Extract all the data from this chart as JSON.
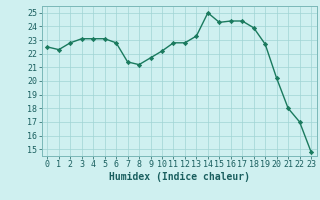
{
  "x": [
    0,
    1,
    2,
    3,
    4,
    5,
    6,
    7,
    8,
    9,
    10,
    11,
    12,
    13,
    14,
    15,
    16,
    17,
    18,
    19,
    20,
    21,
    22,
    23
  ],
  "y": [
    22.5,
    22.3,
    22.8,
    23.1,
    23.1,
    23.1,
    22.8,
    21.4,
    21.2,
    21.7,
    22.2,
    22.8,
    22.8,
    23.3,
    25.0,
    24.3,
    24.4,
    24.4,
    23.9,
    22.7,
    20.2,
    18.0,
    17.0,
    14.8
  ],
  "line_color": "#1a7a5e",
  "marker": "D",
  "markersize": 2.2,
  "linewidth": 1.0,
  "xlabel": "Humidex (Indice chaleur)",
  "xlim": [
    -0.5,
    23.5
  ],
  "ylim": [
    14.5,
    25.5
  ],
  "yticks": [
    15,
    16,
    17,
    18,
    19,
    20,
    21,
    22,
    23,
    24,
    25
  ],
  "xticks": [
    0,
    1,
    2,
    3,
    4,
    5,
    6,
    7,
    8,
    9,
    10,
    11,
    12,
    13,
    14,
    15,
    16,
    17,
    18,
    19,
    20,
    21,
    22,
    23
  ],
  "bg_color": "#cff0f0",
  "grid_color": "#a0d4d4",
  "xlabel_fontsize": 7,
  "tick_fontsize": 6,
  "tick_label_color": "#1a5f5f"
}
